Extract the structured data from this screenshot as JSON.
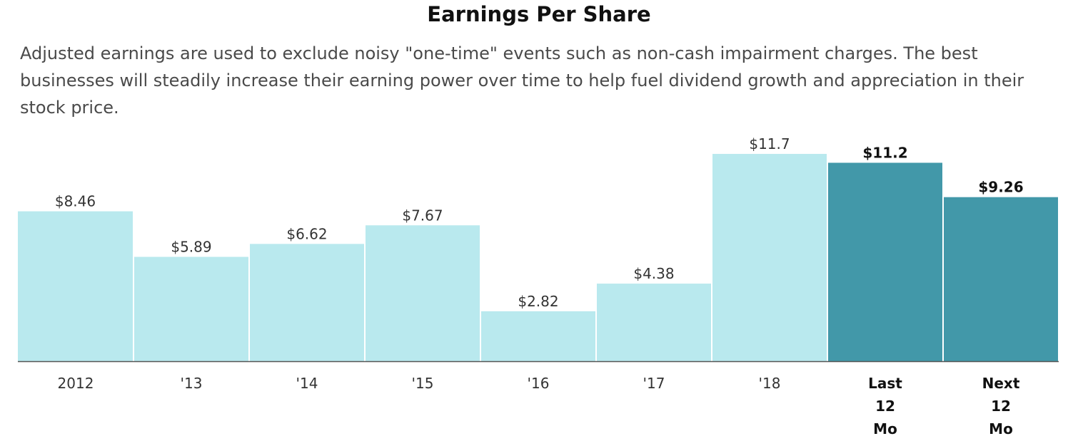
{
  "chart_data": {
    "type": "bar",
    "title": "Earnings Per Share",
    "subtitle": "Adjusted earnings are used to exclude noisy \"one-time\" events such as non-cash impairment charges. The best businesses will steadily increase their earning power over time to help fuel dividend growth and appreciation in their stock price.",
    "categories": [
      [
        "2012"
      ],
      [
        "'13"
      ],
      [
        "'14"
      ],
      [
        "'15"
      ],
      [
        "'16"
      ],
      [
        "'17"
      ],
      [
        "'18"
      ],
      [
        "Last",
        "12",
        "Mo"
      ],
      [
        "Next",
        "12",
        "Mo"
      ]
    ],
    "values": [
      8.46,
      5.89,
      6.62,
      7.67,
      2.82,
      4.38,
      11.7,
      11.2,
      9.26
    ],
    "value_labels": [
      "$8.46",
      "$5.89",
      "$6.62",
      "$7.67",
      "$2.82",
      "$4.38",
      "$11.7",
      "$11.2",
      "$9.26"
    ],
    "highlighted": [
      false,
      false,
      false,
      false,
      false,
      false,
      false,
      true,
      true
    ],
    "ylim": [
      0,
      13
    ],
    "grid": false,
    "legend": "none",
    "xlabel": "",
    "ylabel": "",
    "colors": {
      "bar": "#b9e9ee",
      "bar_highlight": "#4298a9",
      "axis": "#555555"
    }
  }
}
